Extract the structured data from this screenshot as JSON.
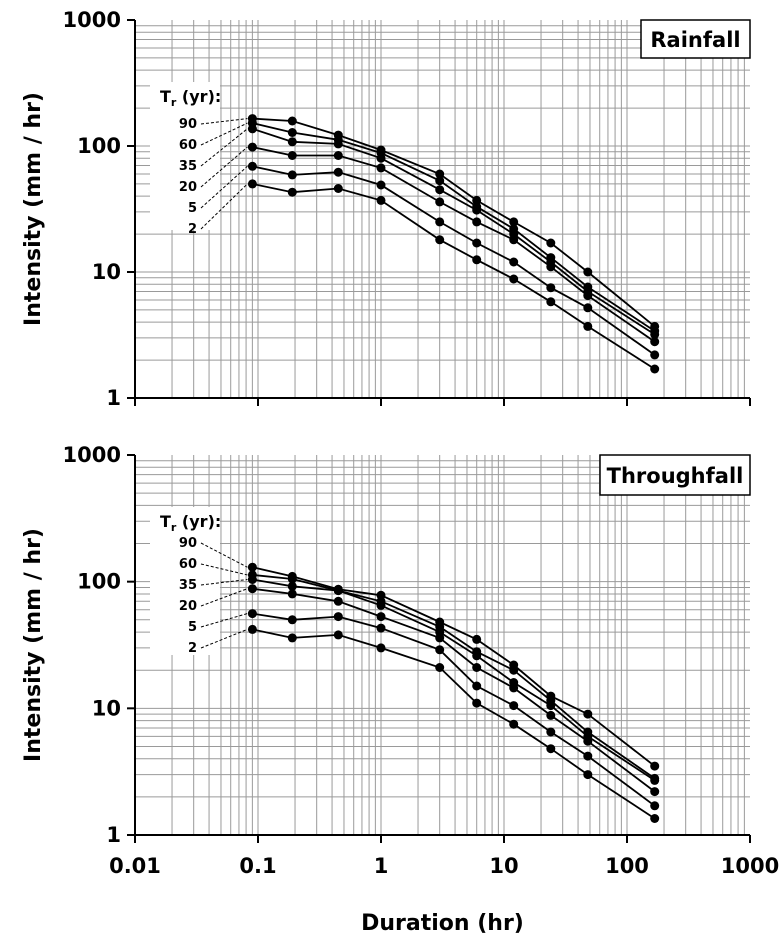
{
  "chart_data": [
    {
      "type": "line",
      "panel_label": "Rainfall",
      "xlabel": "Duration (hr)",
      "ylabel": "Intensity (mm / hr)",
      "x_scale": "log",
      "y_scale": "log",
      "xlim": [
        0.01,
        1000
      ],
      "ylim": [
        1,
        1000
      ],
      "x_ticks": [
        "0.01",
        "0.1",
        "1",
        "10",
        "100",
        "1000"
      ],
      "y_ticks": [
        "1",
        "10",
        "100",
        "1000"
      ],
      "grid": true,
      "legend_title": "T",
      "legend_title_sub": "r",
      "legend_title_suffix": " (yr):",
      "x": [
        0.09,
        0.19,
        0.45,
        1,
        3,
        6,
        12,
        24,
        48,
        168
      ],
      "series": [
        {
          "name": "90",
          "values": [
            165,
            158,
            122,
            93,
            60,
            37,
            25,
            17,
            10,
            3.7
          ]
        },
        {
          "name": "60",
          "values": [
            152,
            128,
            112,
            88,
            53,
            33,
            22,
            13,
            7.6,
            3.4
          ]
        },
        {
          "name": "35",
          "values": [
            137,
            108,
            104,
            80,
            45,
            31,
            20,
            12,
            7.0,
            3.2
          ]
        },
        {
          "name": "20",
          "values": [
            98,
            84,
            84,
            67,
            36,
            25,
            18,
            11,
            6.5,
            2.8
          ]
        },
        {
          "name": "5",
          "values": [
            69,
            59,
            62,
            49,
            25,
            17,
            12,
            7.5,
            5.2,
            2.2
          ]
        },
        {
          "name": "2",
          "values": [
            50,
            43,
            46,
            37,
            18,
            12.5,
            8.8,
            5.8,
            3.7,
            1.7
          ]
        }
      ]
    },
    {
      "type": "line",
      "panel_label": "Throughfall",
      "xlabel": "Duration (hr)",
      "ylabel": "Intensity (mm / hr)",
      "x_scale": "log",
      "y_scale": "log",
      "xlim": [
        0.01,
        1000
      ],
      "ylim": [
        1,
        1000
      ],
      "x_ticks": [
        "0.01",
        "0.1",
        "1",
        "10",
        "100",
        "1000"
      ],
      "y_ticks": [
        "1",
        "10",
        "100",
        "1000"
      ],
      "grid": true,
      "legend_title": "T",
      "legend_title_sub": "r",
      "legend_title_suffix": " (yr):",
      "x": [
        0.09,
        0.19,
        0.45,
        1,
        3,
        6,
        12,
        24,
        48,
        168
      ],
      "series": [
        {
          "name": "90",
          "values": [
            130,
            110,
            87,
            78,
            48,
            35,
            22,
            12.5,
            9.0,
            3.5
          ]
        },
        {
          "name": "60",
          "values": [
            113,
            105,
            85,
            70,
            44,
            28,
            20,
            11.5,
            6.5,
            2.8
          ]
        },
        {
          "name": "35",
          "values": [
            104,
            92,
            85,
            65,
            40,
            26,
            16,
            10.5,
            6.0,
            2.7
          ]
        },
        {
          "name": "20",
          "values": [
            88,
            80,
            70,
            53,
            36,
            21,
            14.5,
            8.8,
            5.5,
            2.2
          ]
        },
        {
          "name": "5",
          "values": [
            56,
            50,
            53,
            43,
            29,
            15,
            10.5,
            6.5,
            4.2,
            1.7
          ]
        },
        {
          "name": "2",
          "values": [
            42,
            36,
            38,
            30,
            21,
            11,
            7.5,
            4.8,
            3.0,
            1.35
          ]
        }
      ]
    }
  ]
}
